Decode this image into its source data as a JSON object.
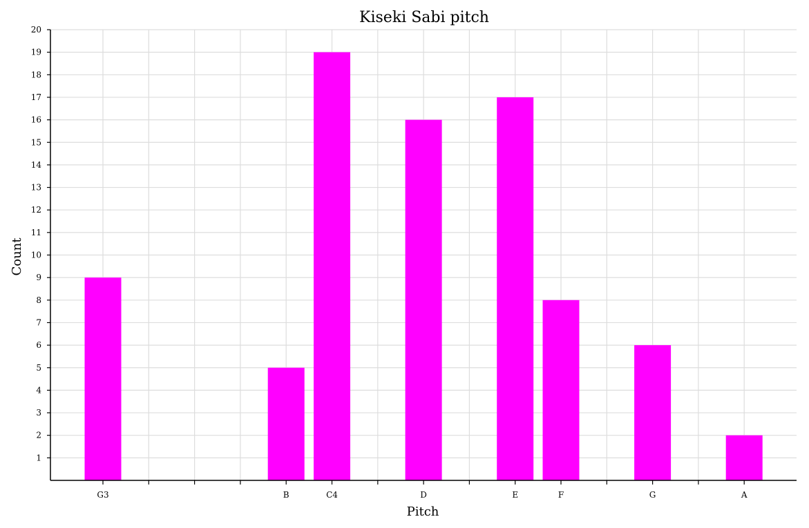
{
  "chart_data": {
    "type": "bar",
    "title": "Kiseki Sabi pitch",
    "xlabel": "Pitch",
    "ylabel": "Count",
    "ylim": [
      0,
      20
    ],
    "yticks": [
      1,
      2,
      3,
      4,
      5,
      6,
      7,
      8,
      9,
      10,
      11,
      12,
      13,
      14,
      15,
      16,
      17,
      18,
      19,
      20
    ],
    "x_slots": [
      "G3",
      "",
      "",
      "",
      "B",
      "C4",
      "",
      "D",
      "",
      "E",
      "F",
      "",
      "G",
      "",
      "A"
    ],
    "categories": [
      "G3",
      "B",
      "C4",
      "D",
      "E",
      "F",
      "G",
      "A"
    ],
    "values": [
      9,
      5,
      19,
      16,
      17,
      8,
      6,
      2
    ],
    "colors": {
      "bar": "#ff00ff",
      "grid": "#dddddd",
      "axis": "#000000"
    },
    "grid": true
  }
}
